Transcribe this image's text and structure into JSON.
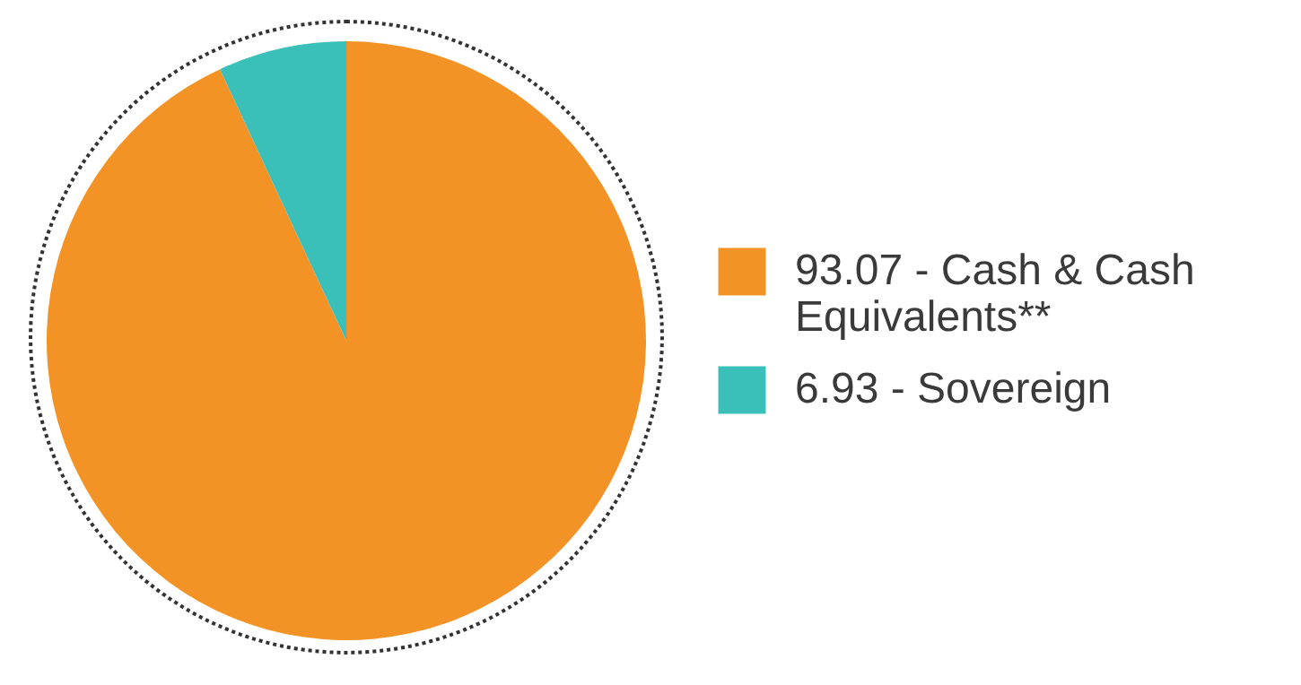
{
  "chart_data": {
    "type": "pie",
    "categories": [
      "93.07 - Cash & Cash Equivalents**",
      "6.93 - Sovereign"
    ],
    "values": [
      93.07,
      6.93
    ],
    "colors": [
      "#f39325",
      "#3bbfb9"
    ],
    "legend": "right"
  }
}
